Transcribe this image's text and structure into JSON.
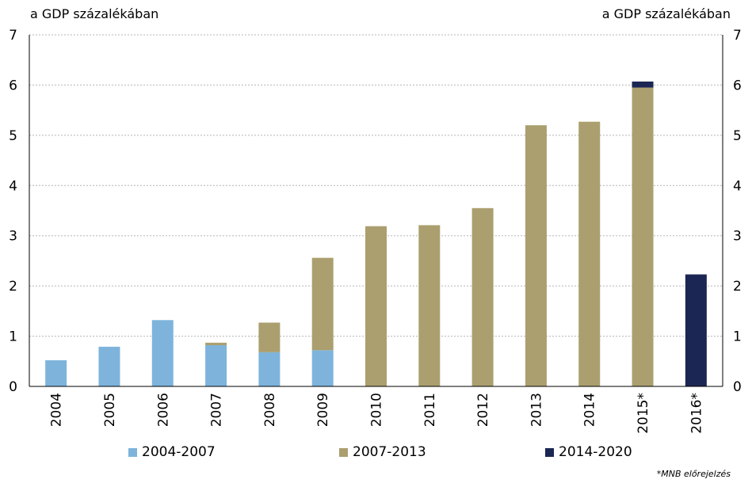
{
  "chart_data": {
    "type": "bar",
    "stacked": true,
    "categories": [
      "2004",
      "2005",
      "2006",
      "2007",
      "2008",
      "2009",
      "2010",
      "2011",
      "2012",
      "2013",
      "2014",
      "2015*",
      "2016*"
    ],
    "series": [
      {
        "name": "2004-2007",
        "color": "#7eb4dc",
        "values": [
          0.52,
          0.79,
          1.32,
          0.82,
          0.68,
          0.72,
          0,
          0,
          0,
          0,
          0,
          0,
          0
        ]
      },
      {
        "name": "2007-2013",
        "color": "#ab9f6f",
        "values": [
          0,
          0,
          0,
          0.05,
          0.59,
          1.84,
          3.19,
          3.21,
          3.55,
          5.2,
          5.27,
          5.95,
          0
        ]
      },
      {
        "name": "2014-2020",
        "color": "#1c2654",
        "values": [
          0,
          0,
          0,
          0,
          0,
          0,
          0,
          0,
          0,
          0,
          0,
          0.12,
          2.23
        ]
      }
    ],
    "ylabel_left": "a GDP százalékában",
    "ylabel_right": "a GDP százalékában",
    "ylim": [
      0,
      7
    ],
    "yticks": [
      0,
      1,
      2,
      3,
      4,
      5,
      6,
      7
    ],
    "grid": true,
    "legend_position": "bottom",
    "footnote": "*MNB előrejelzés"
  }
}
